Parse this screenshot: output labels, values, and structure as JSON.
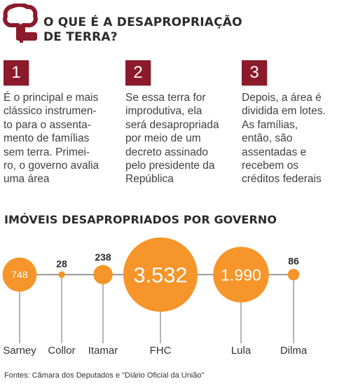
{
  "header": {
    "title_line1": "O QUE É A DESAPROPRIAÇÃO",
    "title_line2": "DE TERRA?",
    "icon": "tree-icon",
    "accent_color": "#8b1a2a"
  },
  "steps": [
    {
      "number": "1",
      "text": "É o principal e mais\nclássico instrumen-\nto para o assenta-\nmento de famílias\nsem terra. Primei-\nro, o governo avalia\numa área"
    },
    {
      "number": "2",
      "text": "Se essa terra for\nimprodutiva, ela\nserá desapropriada\npor meio de um\ndecreto assinado\npelo presidente da\nRepública"
    },
    {
      "number": "3",
      "text": "Depois, a área é\ndividida em lotes.\nAs famílias,\nentão, são\nassentadas e\nrecebem os\ncréditos federais"
    }
  ],
  "chart_data": {
    "type": "bubble",
    "title": "IMÓVEIS DESAPROPRIADOS POR GOVERNO",
    "bubble_color": "#f5952a",
    "categories": [
      "Sarney",
      "Collor",
      "Itamar",
      "FHC",
      "Lula",
      "Dilma"
    ],
    "values": [
      748,
      28,
      238,
      3532,
      1990,
      86
    ],
    "value_labels": [
      "748",
      "28",
      "238",
      "3.532",
      "1.990",
      "86"
    ],
    "label_inside": [
      true,
      false,
      false,
      true,
      true,
      false
    ]
  },
  "source": "Fontes: Câmara dos Deputados e \"Diário Oficial da União\""
}
